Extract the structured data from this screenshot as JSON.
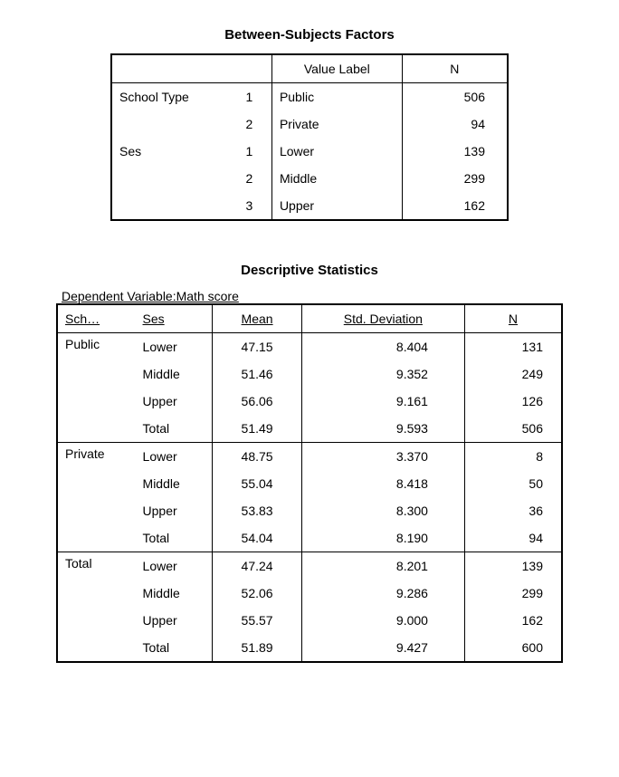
{
  "table1": {
    "title": "Between-Subjects Factors",
    "headers": {
      "value_label": "Value Label",
      "n": "N"
    },
    "rows": [
      {
        "factor": "School Type",
        "level": "1",
        "label": "Public",
        "n": "506"
      },
      {
        "factor": "",
        "level": "2",
        "label": "Private",
        "n": "94"
      },
      {
        "factor": "Ses",
        "level": "1",
        "label": "Lower",
        "n": "139"
      },
      {
        "factor": "",
        "level": "2",
        "label": "Middle",
        "n": "299"
      },
      {
        "factor": "",
        "level": "3",
        "label": "Upper",
        "n": "162"
      }
    ]
  },
  "table2": {
    "title": "Descriptive Statistics",
    "caption": "Dependent Variable:Math score",
    "headers": {
      "sch": "Sch…",
      "ses": "Ses",
      "mean": "Mean",
      "sd": "Std. Deviation",
      "n": "N"
    },
    "groups": [
      {
        "sch": "Public",
        "rows": [
          {
            "ses": "Lower",
            "mean": "47.15",
            "sd": "8.404",
            "n": "131"
          },
          {
            "ses": "Middle",
            "mean": "51.46",
            "sd": "9.352",
            "n": "249"
          },
          {
            "ses": "Upper",
            "mean": "56.06",
            "sd": "9.161",
            "n": "126"
          },
          {
            "ses": "Total",
            "mean": "51.49",
            "sd": "9.593",
            "n": "506"
          }
        ]
      },
      {
        "sch": "Private",
        "rows": [
          {
            "ses": "Lower",
            "mean": "48.75",
            "sd": "3.370",
            "n": "8"
          },
          {
            "ses": "Middle",
            "mean": "55.04",
            "sd": "8.418",
            "n": "50"
          },
          {
            "ses": "Upper",
            "mean": "53.83",
            "sd": "8.300",
            "n": "36"
          },
          {
            "ses": "Total",
            "mean": "54.04",
            "sd": "8.190",
            "n": "94"
          }
        ]
      },
      {
        "sch": "Total",
        "rows": [
          {
            "ses": "Lower",
            "mean": "47.24",
            "sd": "8.201",
            "n": "139"
          },
          {
            "ses": "Middle",
            "mean": "52.06",
            "sd": "9.286",
            "n": "299"
          },
          {
            "ses": "Upper",
            "mean": "55.57",
            "sd": "9.000",
            "n": "162"
          },
          {
            "ses": "Total",
            "mean": "51.89",
            "sd": "9.427",
            "n": "600"
          }
        ]
      }
    ]
  }
}
